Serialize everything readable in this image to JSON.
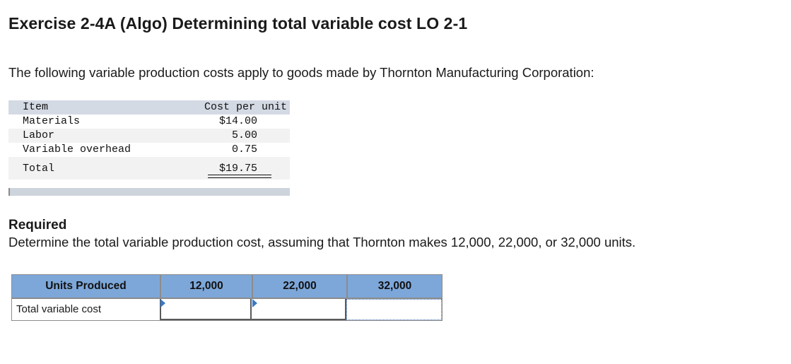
{
  "header": {
    "title": "Exercise 2-4A (Algo) Determining total variable cost LO 2-1"
  },
  "intro": {
    "text": "The following variable production costs apply to goods made by Thornton Manufacturing Corporation:"
  },
  "cost_table": {
    "item_header": "Item",
    "cost_header": "Cost per unit",
    "rows": [
      {
        "item": "Materials",
        "cost": "$14.00"
      },
      {
        "item": "Labor",
        "cost": "5.00"
      },
      {
        "item": "Variable overhead",
        "cost": "0.75"
      }
    ],
    "total": {
      "item": "Total",
      "cost": "$19.75"
    }
  },
  "required": {
    "heading": "Required",
    "text": "Determine the total variable production cost, assuming that Thornton makes 12,000, 22,000, or 32,000 units."
  },
  "answer_table": {
    "row_header": "Units Produced",
    "columns": [
      "12,000",
      "22,000",
      "32,000"
    ],
    "row_label": "Total variable cost",
    "values": [
      "",
      "",
      ""
    ]
  },
  "colors": {
    "answer_header_bg": "#7da7d9",
    "cost_header_bg": "#d4dae4",
    "input_marker": "#3b78c3"
  }
}
